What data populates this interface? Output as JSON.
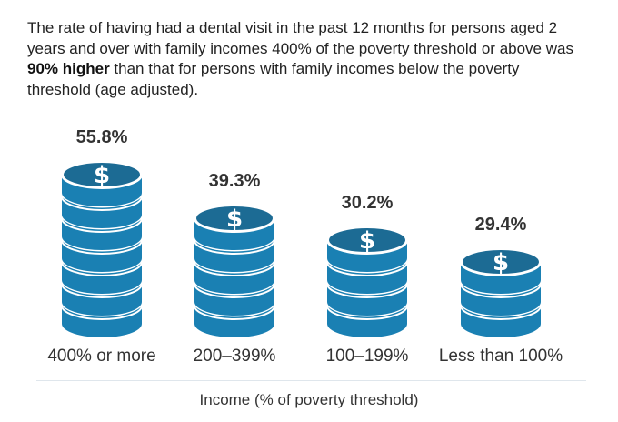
{
  "intro": {
    "before": "The rate of having had a dental visit in the past 12 months for persons aged 2 years and over with family incomes 400% of the poverty threshold or above was ",
    "bold": "90% higher",
    "after": " than that for persons with family incomes below the poverty threshold (age adjusted)."
  },
  "chart_data": {
    "type": "bar",
    "title": "",
    "xlabel": "Income (% of poverty threshold)",
    "ylabel": "",
    "categories": [
      "400% or more",
      "200–399%",
      "100–199%",
      "Less than 100%"
    ],
    "values": [
      55.8,
      39.3,
      30.2,
      29.4
    ],
    "value_labels": [
      "55.8%",
      "39.3%",
      "30.2%",
      "29.4%"
    ],
    "coin_counts": [
      7,
      5,
      4,
      3
    ],
    "icon": "dollar-coin-stack-icon",
    "colors": {
      "coin_side": "#1a80b3",
      "coin_top": "#1c6b94",
      "coin_rim": "#ffffff",
      "symbol": "#ffffff"
    }
  }
}
